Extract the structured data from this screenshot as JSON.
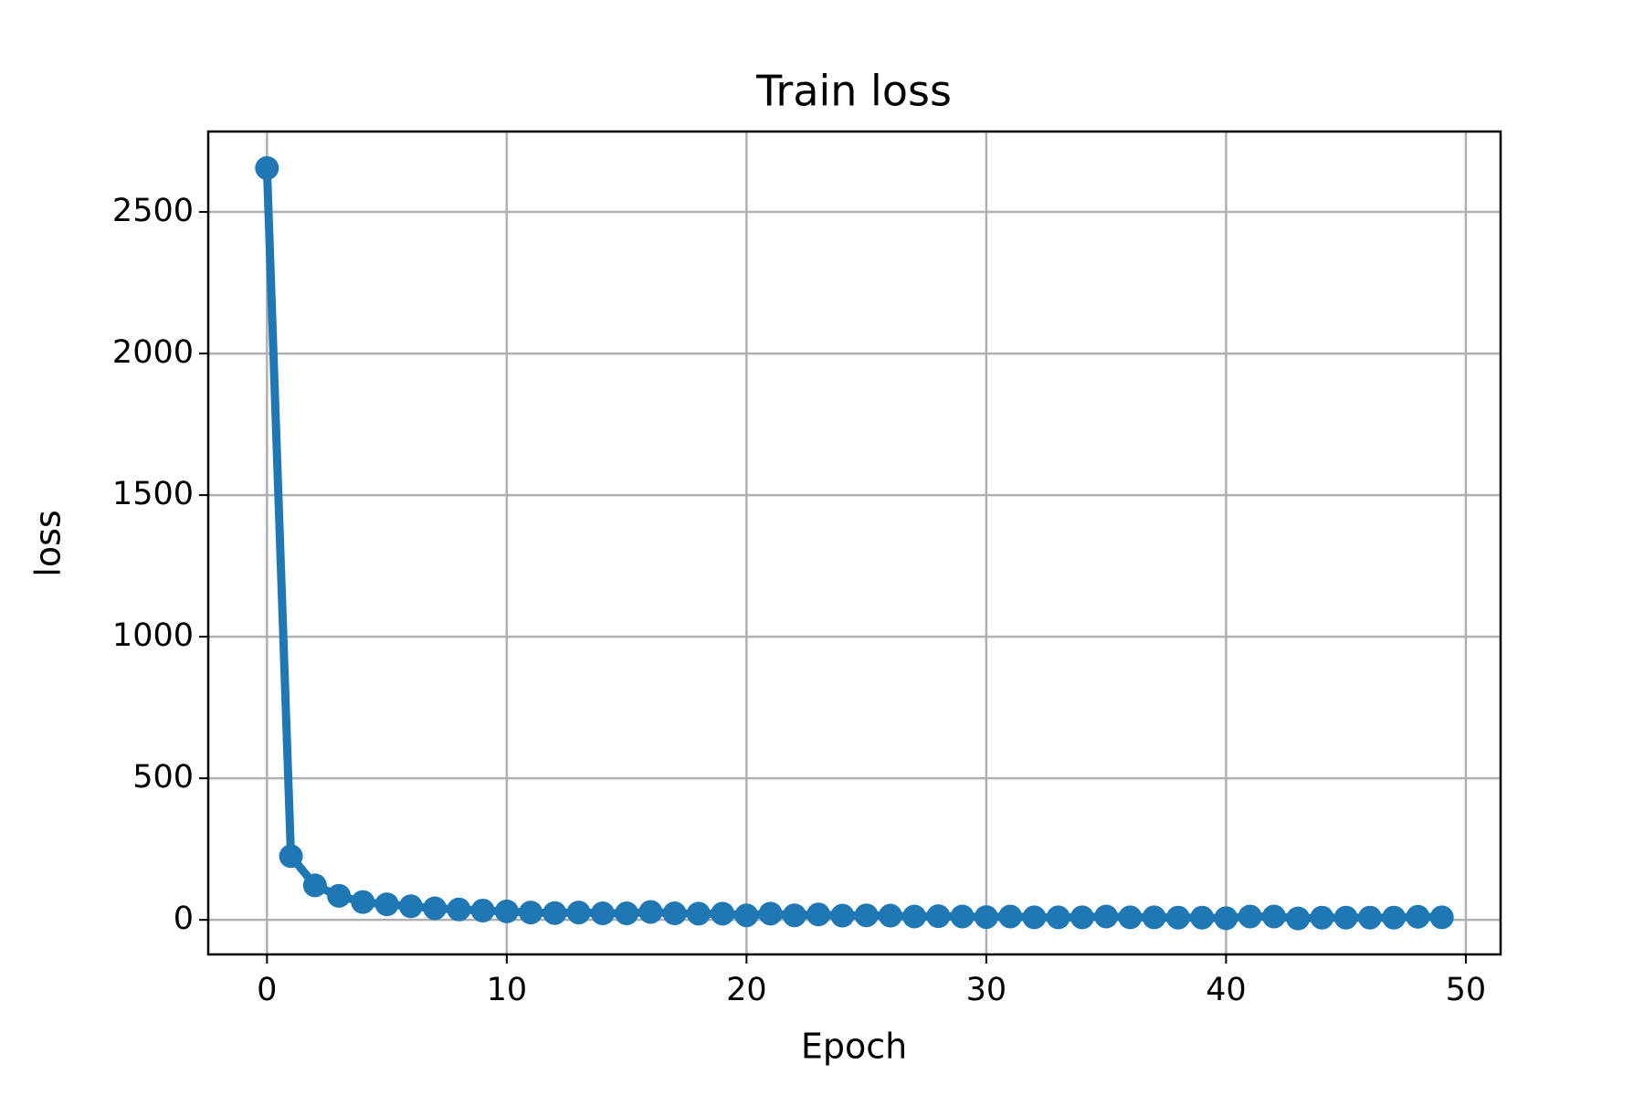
{
  "chart_data": {
    "type": "line",
    "title": "Train loss",
    "x_label": "Epoch",
    "y_label": "loss",
    "x": [
      0,
      1,
      2,
      3,
      4,
      5,
      6,
      7,
      8,
      9,
      10,
      11,
      12,
      13,
      14,
      15,
      16,
      17,
      18,
      19,
      20,
      21,
      22,
      23,
      24,
      25,
      26,
      27,
      28,
      29,
      30,
      31,
      32,
      33,
      34,
      35,
      36,
      37,
      38,
      39,
      40,
      41,
      42,
      43,
      44,
      45,
      46,
      47,
      48,
      49
    ],
    "series": [
      {
        "color": "#1f77b4",
        "values": [
          2655,
          225,
          122,
          85,
          63,
          55,
          48,
          41,
          37,
          33,
          30,
          26,
          24,
          26,
          23,
          23,
          28,
          23,
          22,
          22,
          16,
          22,
          16,
          19,
          15,
          16,
          15,
          12,
          13,
          12,
          10,
          12,
          9,
          9,
          9,
          12,
          9,
          9,
          8,
          8,
          6,
          12,
          12,
          5,
          8,
          8,
          8,
          8,
          11,
          9
        ]
      }
    ],
    "xlim": [
      -2.45,
      51.45
    ],
    "xticks": [
      0,
      10,
      20,
      30,
      40,
      50
    ],
    "ylim": [
      -122,
      2784
    ],
    "yticks": [
      0,
      500,
      1000,
      1500,
      2000,
      2500
    ],
    "grid": true,
    "markers": true
  }
}
